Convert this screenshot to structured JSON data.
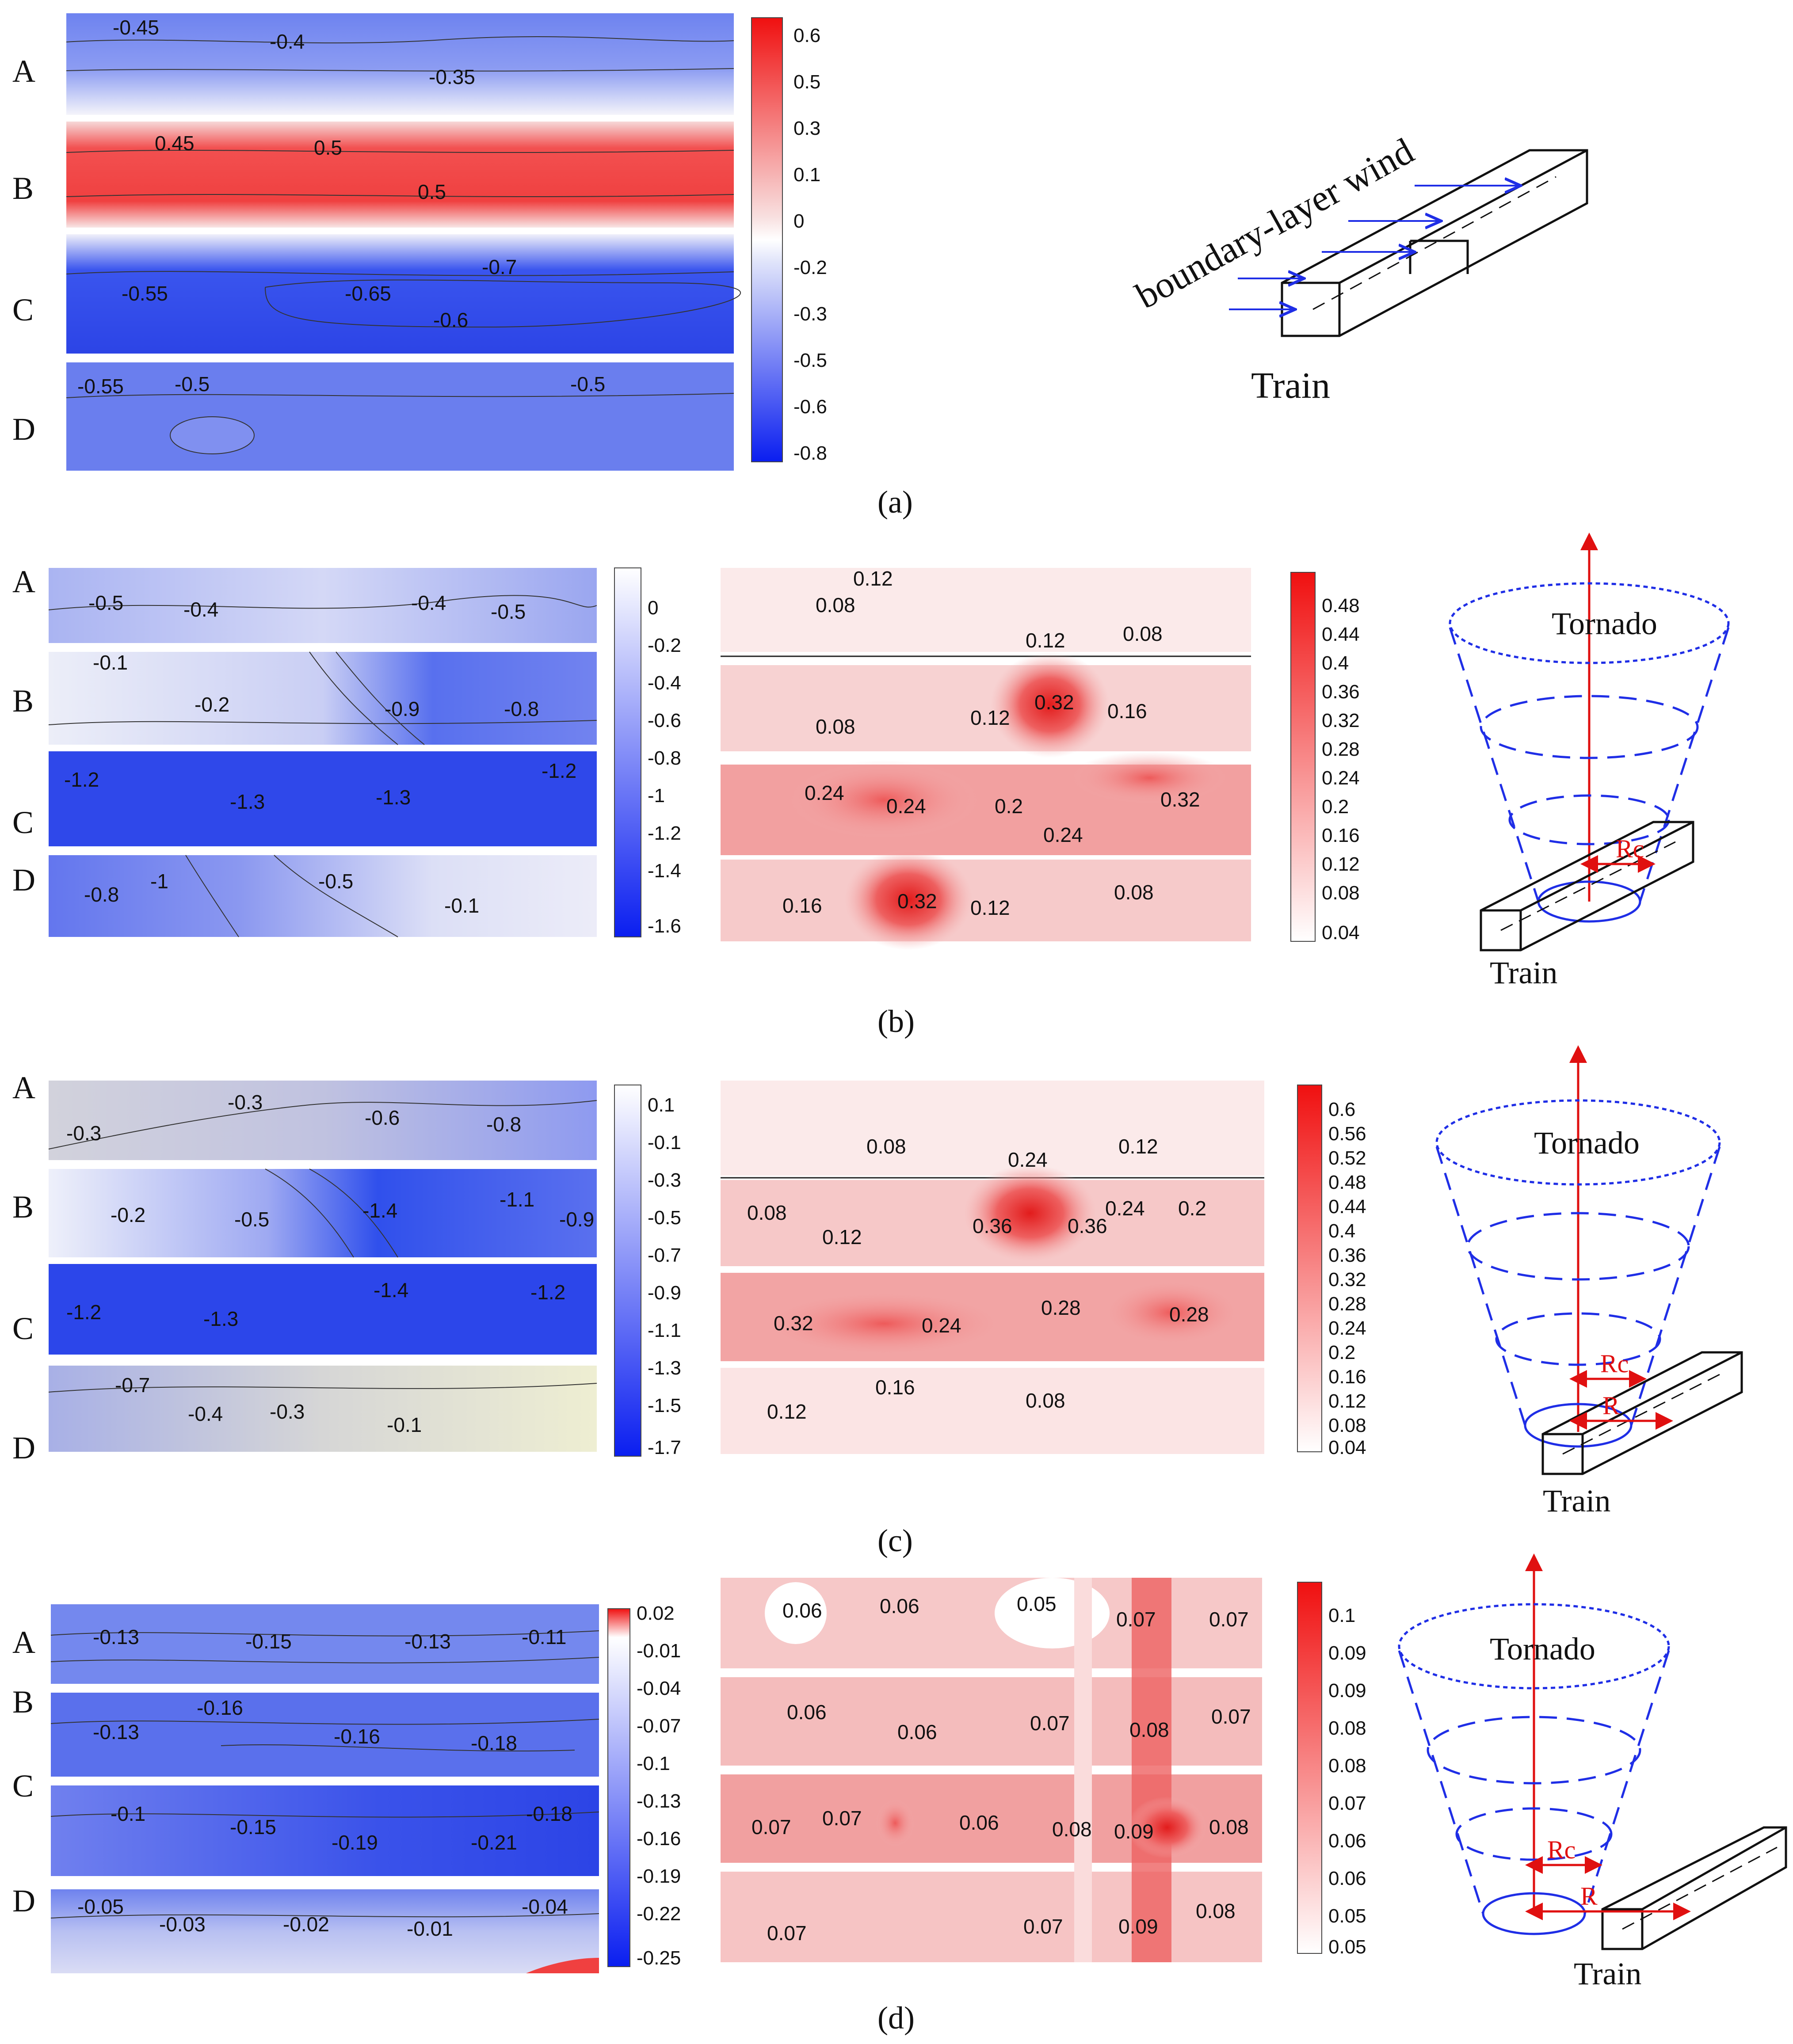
{
  "row_labels": [
    "A",
    "B",
    "C",
    "D"
  ],
  "panel_a": {
    "caption": "(a)",
    "contour_labels": {
      "A": [
        "-0.45",
        "-0.4",
        "-0.35"
      ],
      "B": [
        "0.45",
        "0.5",
        "0.5"
      ],
      "C": [
        "-0.55",
        "-0.65",
        "-0.7",
        "-0.6"
      ],
      "D": [
        "-0.55",
        "-0.5",
        "-0.5"
      ]
    },
    "colorbar": [
      "0.6",
      "0.5",
      "0.3",
      "0.1",
      "0",
      "-0.2",
      "-0.3",
      "-0.5",
      "-0.6",
      "-0.8"
    ],
    "diagram": {
      "wind_label": "boundary-layer wind",
      "train_label": "Train"
    }
  },
  "panel_b": {
    "caption": "(b)",
    "mean_labels": {
      "A": [
        "-0.5",
        "-0.4",
        "-0.4",
        "-0.5"
      ],
      "B": [
        "-0.1",
        "-0.2",
        "-0.9",
        "-0.8"
      ],
      "C": [
        "-1.2",
        "-1.3",
        "-1.3",
        "-1.2"
      ],
      "D": [
        "-0.8",
        "-1",
        "-0.5",
        "-0.1"
      ]
    },
    "mean_colorbar": [
      "0",
      "-0.2",
      "-0.4",
      "-0.6",
      "-0.8",
      "-1",
      "-1.2",
      "-1.4",
      "-1.6"
    ],
    "std_labels": {
      "A": [
        "0.12",
        "0.08",
        "0.12",
        "0.08"
      ],
      "B": [
        "0.08",
        "0.12",
        "0.32",
        "0.16"
      ],
      "C": [
        "0.24",
        "0.24",
        "0.2",
        "0.24",
        "0.32"
      ],
      "D": [
        "0.16",
        "0.32",
        "0.12",
        "0.08"
      ]
    },
    "std_colorbar": [
      "0.48",
      "0.44",
      "0.4",
      "0.36",
      "0.32",
      "0.28",
      "0.24",
      "0.2",
      "0.16",
      "0.12",
      "0.08",
      "0.04"
    ],
    "diagram": {
      "tornado_label": "Tornado",
      "train_label": "Train",
      "rc_label": "Rc"
    }
  },
  "panel_c": {
    "caption": "(c)",
    "mean_labels": {
      "A": [
        "-0.3",
        "-0.3",
        "-0.6",
        "-0.8"
      ],
      "B": [
        "-0.2",
        "-0.5",
        "-1.4",
        "-1.1",
        "-0.9"
      ],
      "C": [
        "-1.2",
        "-1.3",
        "-1.4",
        "-1.2"
      ],
      "D": [
        "-0.7",
        "-0.4",
        "-0.3",
        "-0.1"
      ]
    },
    "mean_colorbar": [
      "0.1",
      "-0.1",
      "-0.3",
      "-0.5",
      "-0.7",
      "-0.9",
      "-1.1",
      "-1.3",
      "-1.5",
      "-1.7"
    ],
    "std_labels": {
      "A": [
        "0.08",
        "0.24",
        "0.12"
      ],
      "B": [
        "0.08",
        "0.12",
        "0.36",
        "0.36",
        "0.24",
        "0.2"
      ],
      "C": [
        "0.32",
        "0.24",
        "0.28",
        "0.28"
      ],
      "D": [
        "0.12",
        "0.16",
        "0.08"
      ]
    },
    "std_colorbar": [
      "0.6",
      "0.56",
      "0.52",
      "0.48",
      "0.44",
      "0.4",
      "0.36",
      "0.32",
      "0.28",
      "0.24",
      "0.2",
      "0.16",
      "0.12",
      "0.08",
      "0.04"
    ],
    "diagram": {
      "tornado_label": "Tornado",
      "train_label": "Train",
      "rc_label": "Rc",
      "r_label": "R"
    }
  },
  "panel_d": {
    "caption": "(d)",
    "mean_labels": {
      "A": [
        "-0.13",
        "-0.15",
        "-0.13",
        "-0.11"
      ],
      "B": [
        "-0.13",
        "-0.16",
        "-0.16",
        "-0.18"
      ],
      "C": [
        "-0.1",
        "-0.15",
        "-0.19",
        "-0.21",
        "-0.18"
      ],
      "D": [
        "-0.05",
        "-0.03",
        "-0.02",
        "-0.01",
        "-0.04"
      ]
    },
    "mean_colorbar": [
      "0.02",
      "-0.01",
      "-0.04",
      "-0.07",
      "-0.1",
      "-0.13",
      "-0.16",
      "-0.19",
      "-0.22",
      "-0.25"
    ],
    "std_labels": {
      "A": [
        "0.06",
        "0.06",
        "0.05",
        "0.07",
        "0.07"
      ],
      "B": [
        "0.06",
        "0.06",
        "0.07",
        "0.08",
        "0.07"
      ],
      "C": [
        "0.07",
        "0.07",
        "0.06",
        "0.08",
        "0.09",
        "0.08"
      ],
      "D": [
        "0.07",
        "0.07",
        "0.09",
        "0.08"
      ]
    },
    "std_colorbar": [
      "0.1",
      "0.09",
      "0.09",
      "0.08",
      "0.08",
      "0.07",
      "0.06",
      "0.06",
      "0.05",
      "0.05"
    ],
    "diagram": {
      "tornado_label": "Tornado",
      "train_label": "Train",
      "rc_label": "Rc",
      "r_label": "R"
    }
  }
}
